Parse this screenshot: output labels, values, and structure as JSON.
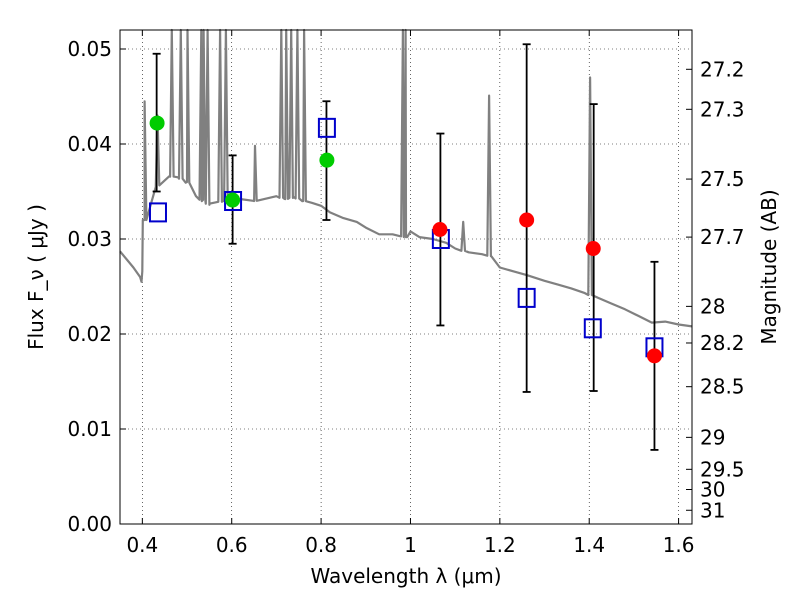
{
  "chart_data": {
    "type": "scatter",
    "xlabel": "Wavelength  λ (μm)",
    "ylabel": "Flux  F_ν  ( μJy )",
    "ylabel_right": "Magnitude (AB)",
    "xlim": [
      0.35,
      1.63
    ],
    "ylim": [
      0.0,
      0.052
    ],
    "grid": true,
    "x_ticks": [
      {
        "value": 0.4,
        "label": "0.4"
      },
      {
        "value": 0.6,
        "label": "0.6"
      },
      {
        "value": 0.8,
        "label": "0.8"
      },
      {
        "value": 1.0,
        "label": "1"
      },
      {
        "value": 1.2,
        "label": "1.2"
      },
      {
        "value": 1.4,
        "label": "1.4"
      },
      {
        "value": 1.6,
        "label": "1.6"
      }
    ],
    "y_ticks": [
      {
        "value": 0.0,
        "label": "0.00"
      },
      {
        "value": 0.01,
        "label": "0.01"
      },
      {
        "value": 0.02,
        "label": "0.02"
      },
      {
        "value": 0.03,
        "label": "0.03"
      },
      {
        "value": 0.04,
        "label": "0.04"
      },
      {
        "value": 0.05,
        "label": "0.05"
      }
    ],
    "right_ticks": [
      {
        "mag": 27.2,
        "label": "27.2"
      },
      {
        "mag": 27.3,
        "label": "27.3"
      },
      {
        "mag": 27.5,
        "label": "27.5"
      },
      {
        "mag": 27.7,
        "label": "27.7"
      },
      {
        "mag": 28.0,
        "label": "28"
      },
      {
        "mag": 28.2,
        "label": "28.2"
      },
      {
        "mag": 28.5,
        "label": "28.5"
      },
      {
        "mag": 29.0,
        "label": "29"
      },
      {
        "mag": 29.5,
        "label": "29.5"
      },
      {
        "mag": 30.0,
        "label": "30"
      },
      {
        "mag": 31.0,
        "label": "31"
      }
    ],
    "series": [
      {
        "kind": "spectrum",
        "color": "#808080",
        "x": [
          0.35,
          0.38,
          0.395,
          0.398,
          0.4,
          0.405,
          0.43,
          0.46,
          0.48,
          0.5,
          0.52,
          0.55,
          0.58,
          0.6,
          0.62,
          0.65,
          0.7,
          0.72,
          0.74,
          0.76,
          0.78,
          0.8,
          0.82,
          0.85,
          0.88,
          0.9,
          0.93,
          0.96,
          0.99,
          1.0,
          1.02,
          1.05,
          1.08,
          1.1,
          1.13,
          1.16,
          1.18,
          1.2,
          1.23,
          1.26,
          1.3,
          1.33,
          1.36,
          1.39,
          1.42,
          1.45,
          1.48,
          1.51,
          1.54,
          1.57,
          1.6,
          1.63
        ],
        "y": [
          0.0287,
          0.027,
          0.026,
          0.0255,
          0.0266,
          0.032,
          0.0355,
          0.0366,
          0.0365,
          0.036,
          0.0345,
          0.0336,
          0.034,
          0.034,
          0.0342,
          0.034,
          0.0345,
          0.0342,
          0.0344,
          0.034,
          0.0338,
          0.0335,
          0.0328,
          0.0322,
          0.0318,
          0.0312,
          0.0305,
          0.0305,
          0.0302,
          0.0308,
          0.0302,
          0.03,
          0.0296,
          0.029,
          0.0286,
          0.0284,
          0.0282,
          0.027,
          0.0266,
          0.0262,
          0.0256,
          0.0252,
          0.0248,
          0.0243,
          0.0238,
          0.0232,
          0.0226,
          0.0219,
          0.0212,
          0.0213,
          0.021,
          0.0208
        ],
        "lines": [
          {
            "x": 0.405,
            "peak": 0.0445
          },
          {
            "x": 0.434,
            "peak": 0.043
          },
          {
            "x": 0.466,
            "peak": 0.052
          },
          {
            "x": 0.486,
            "peak": 0.052
          },
          {
            "x": 0.501,
            "peak": 0.052
          },
          {
            "x": 0.532,
            "peak": 0.052
          },
          {
            "x": 0.537,
            "peak": 0.052
          },
          {
            "x": 0.546,
            "peak": 0.052
          },
          {
            "x": 0.574,
            "peak": 0.052
          },
          {
            "x": 0.587,
            "peak": 0.052
          },
          {
            "x": 0.652,
            "peak": 0.0398
          },
          {
            "x": 0.711,
            "peak": 0.052
          },
          {
            "x": 0.722,
            "peak": 0.052
          },
          {
            "x": 0.733,
            "peak": 0.052
          },
          {
            "x": 0.747,
            "peak": 0.052
          },
          {
            "x": 0.762,
            "peak": 0.052
          },
          {
            "x": 0.983,
            "peak": 0.052
          },
          {
            "x": 0.989,
            "peak": 0.052
          },
          {
            "x": 1.118,
            "peak": 0.0318
          },
          {
            "x": 1.176,
            "peak": 0.0451
          },
          {
            "x": 1.402,
            "peak": 0.047
          }
        ]
      },
      {
        "kind": "squares",
        "color": "#0000cc",
        "x": [
          0.435,
          0.603,
          0.813,
          1.068,
          1.26,
          1.408,
          1.546
        ],
        "y": [
          0.0328,
          0.034,
          0.0417,
          0.03,
          0.0238,
          0.0206,
          0.0186
        ]
      },
      {
        "kind": "circles",
        "color": "#00cc00",
        "x": [
          0.433,
          0.602,
          0.813
        ],
        "y": [
          0.0422,
          0.0341,
          0.0383
        ]
      },
      {
        "kind": "circles",
        "color": "#ff0000",
        "x": [
          1.066,
          1.26,
          1.409,
          1.546
        ],
        "y": [
          0.031,
          0.032,
          0.029,
          0.0177
        ]
      }
    ],
    "error_bars": [
      {
        "x": 0.432,
        "low": 0.035,
        "high": 0.0495
      },
      {
        "x": 0.602,
        "low": 0.0295,
        "high": 0.0388
      },
      {
        "x": 0.812,
        "low": 0.032,
        "high": 0.0445
      },
      {
        "x": 1.067,
        "low": 0.0209,
        "high": 0.0411
      },
      {
        "x": 1.26,
        "low": 0.0139,
        "high": 0.0505
      },
      {
        "x": 1.41,
        "low": 0.014,
        "high": 0.0442
      },
      {
        "x": 1.546,
        "low": 0.0078,
        "high": 0.0276
      }
    ]
  }
}
